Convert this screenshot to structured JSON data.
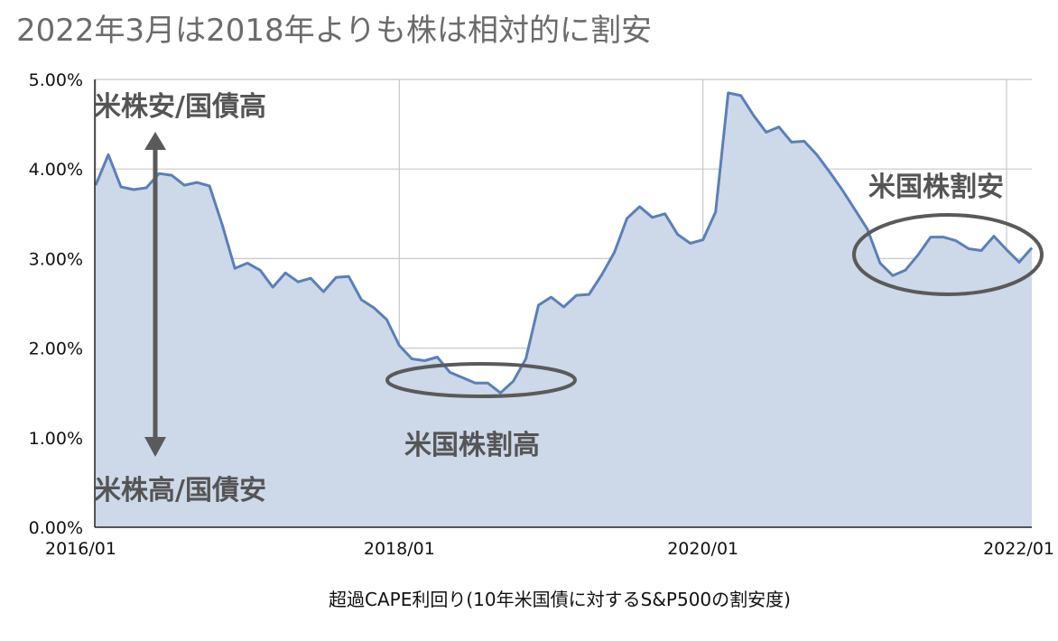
{
  "chart_data": {
    "type": "area",
    "title": "2022年3月は2018年よりも株は相対的に割安",
    "xlabel": "超過CAPE利回り(10年米国債に対するS&P500の割安度)",
    "ylabel": "",
    "ylim": [
      0,
      5
    ],
    "x_ticks": [
      "2016/01",
      "2018/01",
      "2020/01",
      "2022/01"
    ],
    "y_ticks": [
      "0.00%",
      "1.00%",
      "2.00%",
      "3.00%",
      "4.00%",
      "5.00%"
    ],
    "grid": true,
    "legend": "none",
    "series": [
      {
        "x": [
          "2016/01",
          "2016/02",
          "2016/03",
          "2016/04",
          "2016/05",
          "2016/06",
          "2016/07",
          "2016/08",
          "2016/09",
          "2016/10",
          "2016/11",
          "2016/12",
          "2017/01",
          "2017/02",
          "2017/03",
          "2017/04",
          "2017/05",
          "2017/06",
          "2017/07",
          "2017/08",
          "2017/09",
          "2017/10",
          "2017/11",
          "2017/12",
          "2018/01",
          "2018/02",
          "2018/03",
          "2018/04",
          "2018/05",
          "2018/06",
          "2018/07",
          "2018/08",
          "2018/09",
          "2018/10",
          "2018/11",
          "2018/12",
          "2019/01",
          "2019/02",
          "2019/03",
          "2019/04",
          "2019/05",
          "2019/06",
          "2019/07",
          "2019/08",
          "2019/09",
          "2019/10",
          "2019/11",
          "2019/12",
          "2020/01",
          "2020/02",
          "2020/03",
          "2020/04",
          "2020/05",
          "2020/06",
          "2020/07",
          "2020/08",
          "2020/09",
          "2020/10",
          "2020/11",
          "2020/12",
          "2021/01",
          "2021/02",
          "2021/03",
          "2021/04",
          "2021/05",
          "2021/06",
          "2021/07",
          "2021/08",
          "2021/09",
          "2021/10",
          "2021/11",
          "2021/12",
          "2022/01",
          "2022/02",
          "2022/03"
        ],
        "values": [
          3.82,
          4.16,
          3.8,
          3.77,
          3.79,
          3.95,
          3.93,
          3.82,
          3.85,
          3.81,
          3.38,
          2.89,
          2.95,
          2.87,
          2.68,
          2.84,
          2.74,
          2.78,
          2.63,
          2.79,
          2.8,
          2.54,
          2.45,
          2.32,
          2.03,
          1.88,
          1.86,
          1.9,
          1.73,
          1.67,
          1.61,
          1.61,
          1.5,
          1.63,
          1.88,
          2.48,
          2.57,
          2.46,
          2.59,
          2.6,
          2.82,
          3.07,
          3.45,
          3.58,
          3.46,
          3.5,
          3.27,
          3.17,
          3.21,
          3.52,
          4.85,
          4.82,
          4.6,
          4.41,
          4.47,
          4.3,
          4.31,
          4.16,
          3.97,
          3.77,
          3.55,
          3.33,
          2.95,
          2.81,
          2.87,
          3.04,
          3.24,
          3.24,
          3.2,
          3.11,
          3.09,
          3.25,
          3.1,
          2.96,
          3.12
        ]
      }
    ],
    "colors": {
      "line": "#5b7fb8",
      "fill": "#cdd8e9",
      "grid": "#c8c8c8",
      "annotation": "#5a5a5a"
    },
    "annotations": {
      "top_arrow_label": "米株安/国債高",
      "bottom_arrow_label": "米株高/国債安",
      "low_label": "米国株割高",
      "high_label": "米国株割安"
    }
  }
}
